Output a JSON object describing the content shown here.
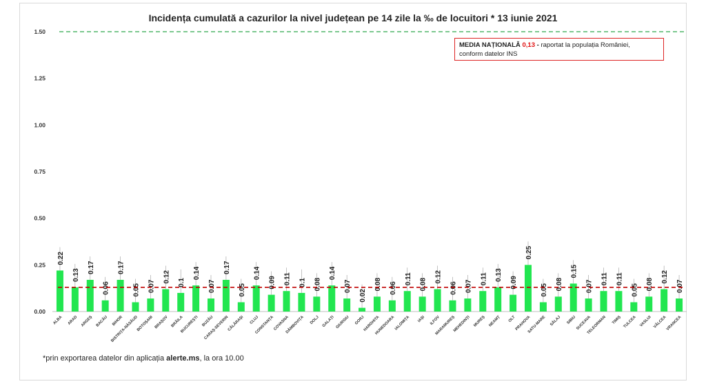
{
  "chart_data": {
    "type": "bar",
    "title": "Incidența cumulată a cazurilor la nivel județean pe 14 zile la ‰ de locuitori *  13 iunie 2021",
    "categories": [
      "ALBA",
      "ARAD",
      "ARGEȘ",
      "BACĂU",
      "BIHOR",
      "BISTRIȚA-NĂSĂUD",
      "BOTOȘANI",
      "BRAȘOV",
      "BRĂILA",
      "BUCUREȘTI",
      "BUZĂU",
      "CARAȘ-SEVERIN",
      "CĂLĂRAȘI",
      "CLUJ",
      "CONSTANȚA",
      "COVASNA",
      "DÂMBOVIȚA",
      "DOLJ",
      "GALAȚI",
      "GIURGIU",
      "GORJ",
      "HARGHITA",
      "HUNEDOARA",
      "IALOMIȚA",
      "IAȘI",
      "ILFOV",
      "MARAMUREȘ",
      "MEHEDINȚI",
      "MUREȘ",
      "NEAMȚ",
      "OLT",
      "PRAHOVA",
      "SATU-MARE",
      "SĂLAJ",
      "SIBIU",
      "SUCEAVA",
      "TELEORMAN",
      "TIMIȘ",
      "TULCEA",
      "VASLUI",
      "VÂLCEA",
      "VRANCEA"
    ],
    "values": [
      0.22,
      0.13,
      0.17,
      0.06,
      0.17,
      0.05,
      0.07,
      0.12,
      0.1,
      0.14,
      0.07,
      0.17,
      0.05,
      0.14,
      0.09,
      0.11,
      0.1,
      0.08,
      0.14,
      0.07,
      0.02,
      0.08,
      0.06,
      0.11,
      0.08,
      0.12,
      0.06,
      0.07,
      0.11,
      0.13,
      0.09,
      0.25,
      0.05,
      0.08,
      0.15,
      0.07,
      0.11,
      0.11,
      0.05,
      0.08,
      0.12,
      0.07
    ],
    "value_labels": [
      "0.22",
      "0.13",
      "0.17",
      "0.06",
      "0.17",
      "0.05",
      "0.07",
      "0.12",
      "0.1",
      "0.14",
      "0.07",
      "0.17",
      "0.05",
      "0.14",
      "0.09",
      "0.11",
      "0.1",
      "0.08",
      "0.14",
      "0.07",
      "0.02",
      "0.08",
      "0.06",
      "0.11",
      "0.08",
      "0.12",
      "0.06",
      "0.07",
      "0.11",
      "0.13",
      "0.09",
      "0.25",
      "0.05",
      "0.08",
      "0.15",
      "0.07",
      "0.11",
      "0.11",
      "0.05",
      "0.08",
      "0.12",
      "0.07"
    ],
    "yticks": [
      "0.00",
      "0.25",
      "0.50",
      "0.75",
      "1.00",
      "1.25",
      "1.50"
    ],
    "ylim": [
      0,
      1.5
    ],
    "national_average": 0.13,
    "threshold_line": 1.5,
    "bar_color": "#22e650",
    "average_line_color": "#c00000",
    "threshold_line_color": "#2aa84a",
    "xlabel": "",
    "ylabel": ""
  },
  "note": {
    "label": "MEDIA NAȚIONALĂ",
    "value": "0,13",
    "dash": " - ",
    "text_line1": "raportat la populația României,",
    "text_line2": "conform datelor INS"
  },
  "footnote": {
    "prefix": "*prin exportarea datelor din aplicația ",
    "app": "alerte.ms",
    "suffix": ", la ora 10.00"
  }
}
